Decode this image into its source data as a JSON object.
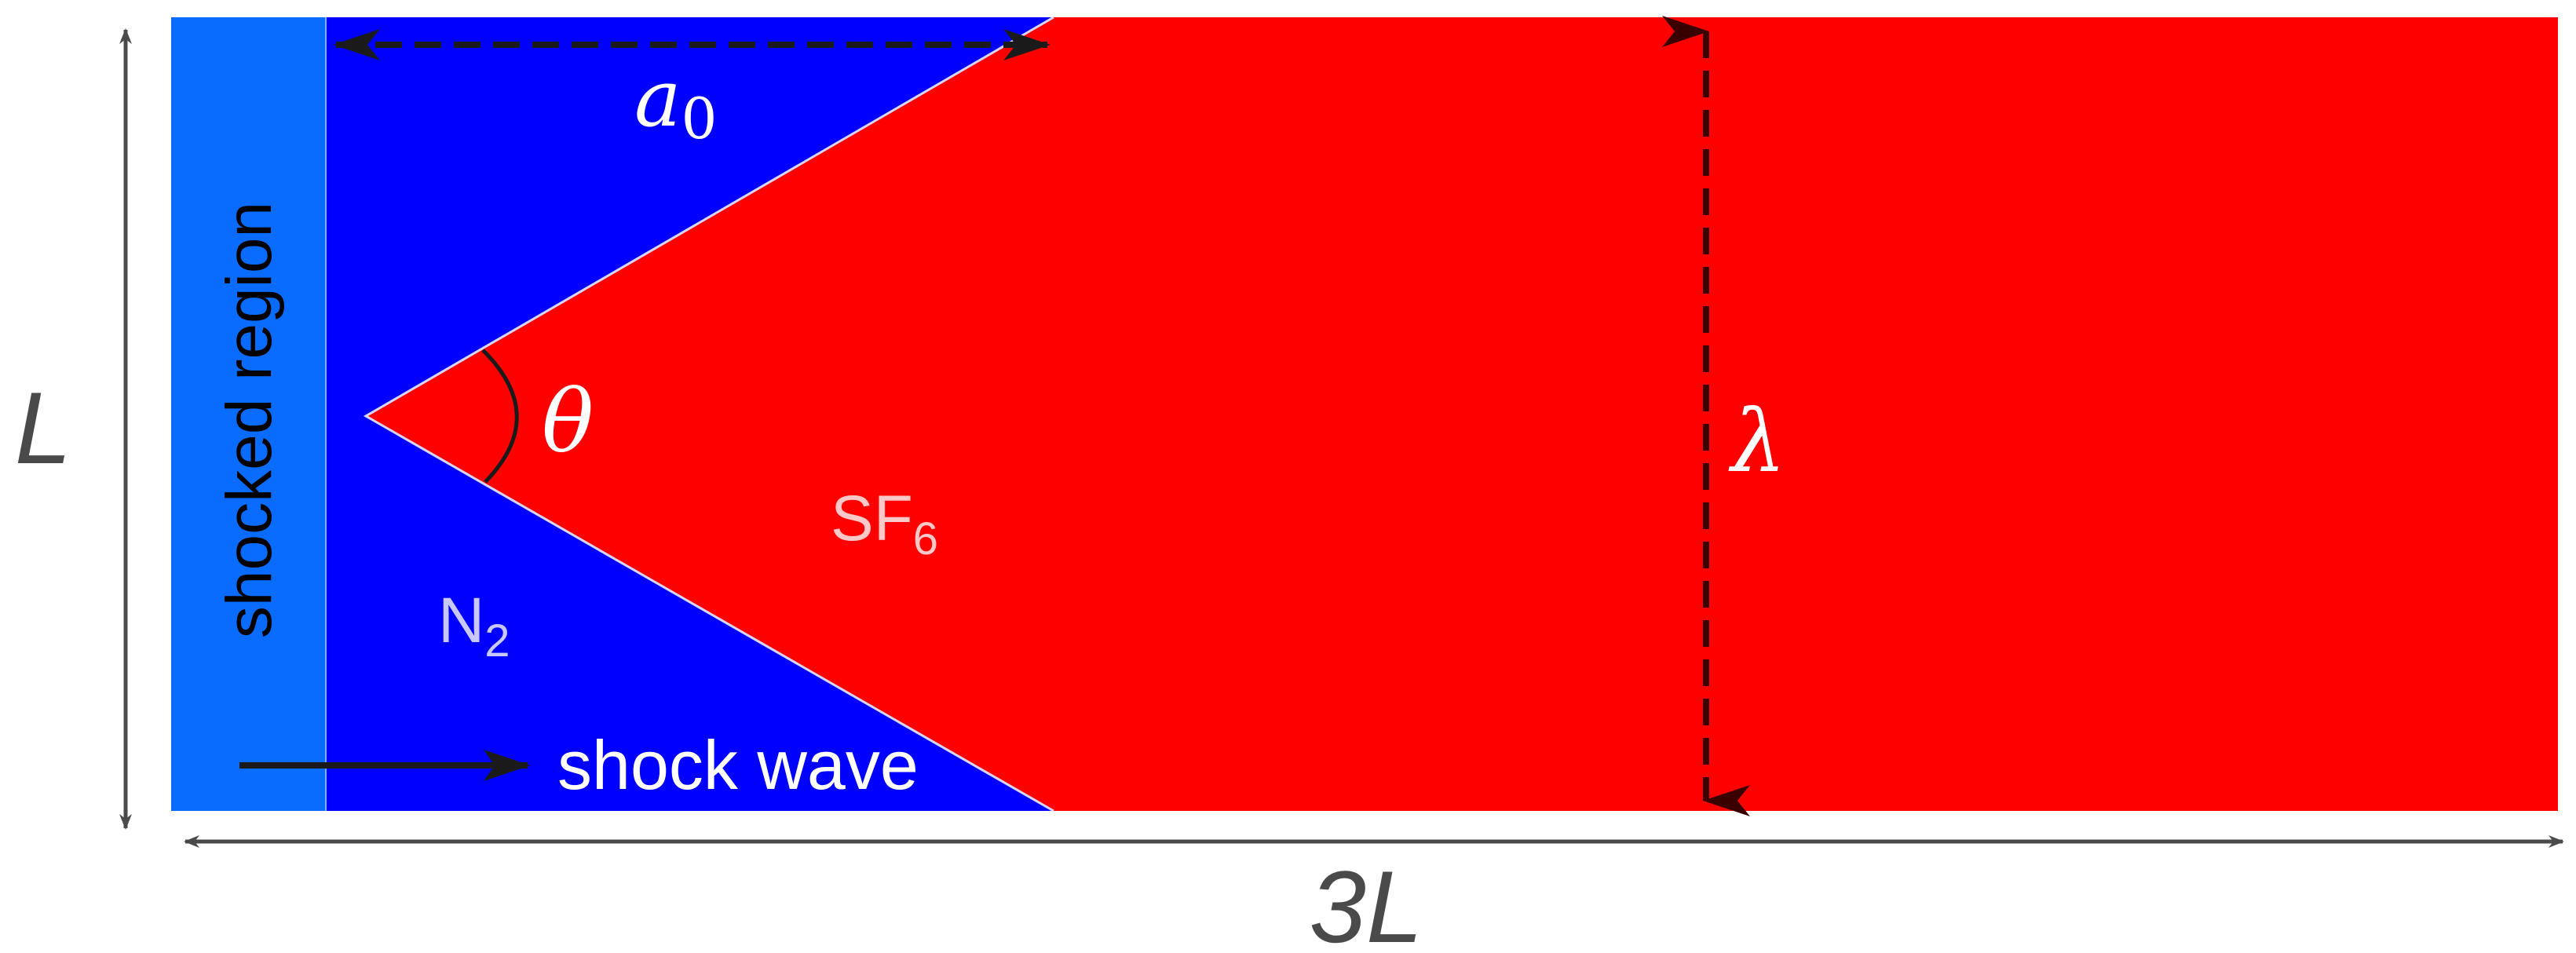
{
  "diagram": {
    "regions": {
      "shocked_region": {
        "label": "shocked region",
        "color": "#0a6cff"
      },
      "n2_region": {
        "label_main": "N",
        "label_sub": "2",
        "color": "#0000ff"
      },
      "sf6_region": {
        "label_main": "SF",
        "label_sub": "6",
        "color": "#ff0000"
      }
    },
    "shock": {
      "label": "shock wave"
    },
    "dimensions": {
      "height_label": "L",
      "width_label": "3L",
      "amplitude_main": "a",
      "amplitude_sub": "0",
      "wavelength_label": "λ",
      "angle_label": "θ"
    },
    "colors": {
      "text_dark": "#4a4a4a",
      "text_light": "#ffffff",
      "arrow_dark": "#1a1a1a",
      "n2_text": "#c8c8ff",
      "sf6_text": "#ffc8c8"
    }
  }
}
